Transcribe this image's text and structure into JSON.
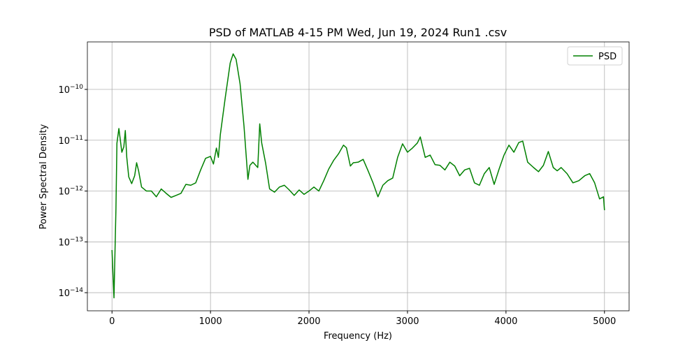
{
  "chart_data": {
    "type": "line",
    "title": "PSD of MATLAB 4-15 PM Wed, Jun 19, 2024 Run1 .csv",
    "x_label": "Frequency (Hz)",
    "y_label": "Power Spectral Density",
    "log_y": true,
    "grid": true,
    "legend": "upper right",
    "xlim": [
      -250,
      5250
    ],
    "xticks": [
      0,
      1000,
      2000,
      3000,
      4000,
      5000
    ],
    "ylim": [
      4.4e-15,
      8.6e-10
    ],
    "yticks": [
      {
        "value": 1e-14,
        "label": "10",
        "exponent": "−14"
      },
      {
        "value": 1e-13,
        "label": "10",
        "exponent": "−13"
      },
      {
        "value": 1e-12,
        "label": "10",
        "exponent": "−12"
      },
      {
        "value": 1e-11,
        "label": "10",
        "exponent": "−11"
      },
      {
        "value": 1e-10,
        "label": "10",
        "exponent": "−10"
      }
    ],
    "x": [
      0,
      20,
      40,
      50,
      70,
      100,
      120,
      135,
      150,
      170,
      200,
      230,
      250,
      270,
      300,
      350,
      400,
      450,
      500,
      550,
      600,
      650,
      700,
      750,
      800,
      850,
      900,
      950,
      1000,
      1030,
      1060,
      1080,
      1100,
      1150,
      1200,
      1230,
      1260,
      1300,
      1340,
      1380,
      1400,
      1430,
      1480,
      1500,
      1520,
      1560,
      1600,
      1650,
      1700,
      1750,
      1800,
      1850,
      1900,
      1950,
      2000,
      2050,
      2100,
      2150,
      2200,
      2250,
      2300,
      2350,
      2380,
      2420,
      2450,
      2500,
      2550,
      2600,
      2650,
      2700,
      2750,
      2800,
      2850,
      2900,
      2950,
      3000,
      3050,
      3100,
      3130,
      3180,
      3230,
      3280,
      3330,
      3380,
      3430,
      3480,
      3530,
      3580,
      3630,
      3680,
      3730,
      3780,
      3830,
      3880,
      3930,
      3980,
      4030,
      4080,
      4130,
      4170,
      4220,
      4280,
      4330,
      4380,
      4430,
      4480,
      4520,
      4560,
      4620,
      4680,
      4740,
      4800,
      4850,
      4900,
      4950,
      4990,
      5000
    ],
    "series": [
      {
        "name": "PSD",
        "color": "#008000",
        "values": [
          6.9e-14,
          7.9e-15,
          4.4e-13,
          8.7e-12,
          1.7e-11,
          5.8e-12,
          7.4e-12,
          1.55e-11,
          4.6e-12,
          1.9e-12,
          1.4e-12,
          2e-12,
          3.6e-12,
          2.5e-12,
          1.2e-12,
          1e-12,
          1e-12,
          7.7e-13,
          1.1e-12,
          9e-13,
          7.5e-13,
          8.2e-13,
          9e-13,
          1.35e-12,
          1.3e-12,
          1.45e-12,
          2.6e-12,
          4.4e-12,
          4.8e-12,
          3.4e-12,
          7e-12,
          4.6e-12,
          1.3e-11,
          6.9e-11,
          3.3e-10,
          5e-10,
          3.9e-10,
          1.3e-10,
          1.9e-11,
          1.7e-12,
          3.2e-12,
          3.7e-12,
          2.9e-12,
          2.1e-11,
          8.8e-12,
          3.5e-12,
          1.1e-12,
          9.5e-13,
          1.2e-12,
          1.3e-12,
          1.05e-12,
          8.2e-13,
          1.05e-12,
          8.6e-13,
          1e-12,
          1.2e-12,
          1e-12,
          1.6e-12,
          2.7e-12,
          4e-12,
          5.4e-12,
          8e-12,
          7.1e-12,
          3.1e-12,
          3.6e-12,
          3.7e-12,
          4.2e-12,
          2.5e-12,
          1.45e-12,
          7.7e-13,
          1.3e-12,
          1.6e-12,
          1.8e-12,
          4.6e-12,
          8.5e-12,
          5.8e-12,
          7e-12,
          8.8e-12,
          1.16e-11,
          4.6e-12,
          5.1e-12,
          3.3e-12,
          3.2e-12,
          2.6e-12,
          3.7e-12,
          3.1e-12,
          2e-12,
          2.6e-12,
          2.8e-12,
          1.45e-12,
          1.3e-12,
          2.2e-12,
          2.9e-12,
          1.35e-12,
          2.7e-12,
          5.1e-12,
          8e-12,
          5.8e-12,
          9e-12,
          9.6e-12,
          3.7e-12,
          2.9e-12,
          2.4e-12,
          3.2e-12,
          6e-12,
          2.9e-12,
          2.5e-12,
          2.9e-12,
          2.2e-12,
          1.45e-12,
          1.6e-12,
          2e-12,
          2.2e-12,
          1.45e-12,
          7e-13,
          7.7e-13,
          4.2e-13
        ]
      }
    ]
  }
}
